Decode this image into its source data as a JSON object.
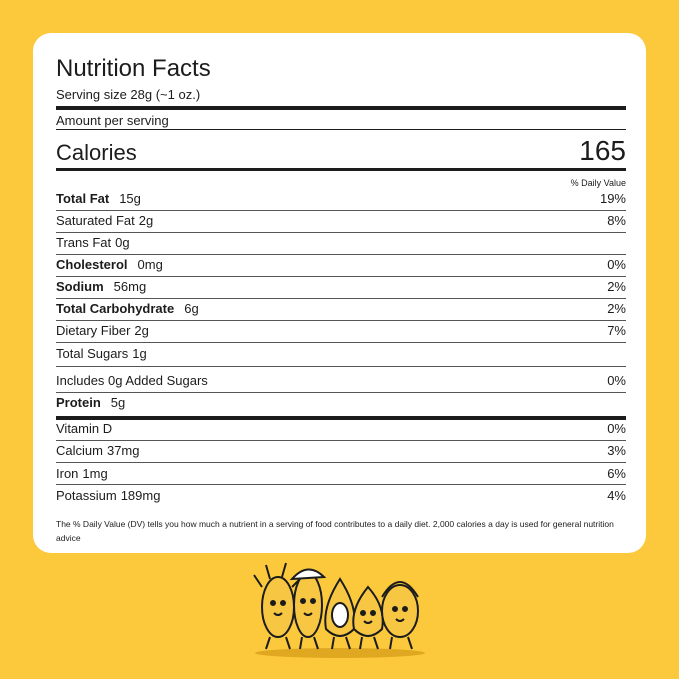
{
  "header": {
    "title": "Nutrition Facts",
    "serving_size": "Serving size 28g (~1 oz.)"
  },
  "amount_per_serving": "Amount per serving",
  "calories": {
    "label": "Calories",
    "value": "165"
  },
  "daily_value_header": "% Daily Value",
  "nutrients": [
    {
      "name": "Total Fat",
      "amount": "15g",
      "dv": "19%",
      "bold": true
    },
    {
      "name": "Saturated Fat",
      "amount": "2g",
      "dv": "8%"
    },
    {
      "name": "Trans Fat",
      "amount": "0g"
    },
    {
      "name": "Cholesterol",
      "amount": "0mg",
      "dv": "0%",
      "bold": true
    },
    {
      "name": "Sodium",
      "amount": "56mg",
      "dv": "2%",
      "bold": true
    },
    {
      "name": "Total Carbohydrate",
      "amount": "6g",
      "dv": "2%",
      "bold": true
    },
    {
      "name": "Dietary Fiber",
      "amount": "2g",
      "dv": "7%"
    },
    {
      "name": "Total Sugars",
      "amount": "1g"
    },
    {
      "name": "Includes 0g Added Sugars",
      "dv": "0%"
    },
    {
      "name": "Protein",
      "amount": "5g",
      "bold": true
    },
    {
      "name": "Vitamin D",
      "dv": "0%"
    },
    {
      "name": "Calcium",
      "amount": "37mg",
      "dv": "3%"
    },
    {
      "name": "Iron",
      "amount": "1mg",
      "dv": "6%"
    },
    {
      "name": "Potassium",
      "amount": "189mg",
      "dv": "4%"
    }
  ],
  "footnote": "The % Daily Value (DV) tells you how much a nutrient in a serving of food contributes to a daily diet. 2,000 calories a day is used for general nutrition advice"
}
